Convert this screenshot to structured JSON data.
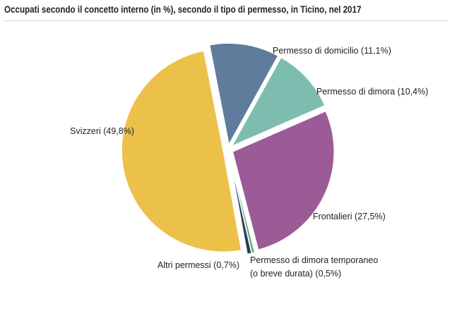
{
  "chart_data": {
    "type": "pie",
    "title": "Occupati secondo il concetto interno (in %), secondo il tipo di permesso, in Ticino, nel 2017",
    "slices": [
      {
        "name": "Permesso di domicilio",
        "label": "Permesso di domicilio (11,1%)",
        "value": 11.1,
        "color": "#5f7c9c",
        "exploded": true
      },
      {
        "name": "Permesso di dimora",
        "label": "Permesso di dimora (10,4%)",
        "value": 10.4,
        "color": "#7dbdb0",
        "exploded": true
      },
      {
        "name": "Frontalieri",
        "label": "Frontalieri (27,5%)",
        "value": 27.5,
        "color": "#9b5b96",
        "exploded": true
      },
      {
        "name": "Permesso di dimora temporaneo (o breve durata)",
        "label_lines": [
          "Permesso di dimora temporaneo",
          "(o breve durata) (0,5%)"
        ],
        "value": 0.5,
        "color": "#5fb07a",
        "exploded": true
      },
      {
        "name": "Altri permessi",
        "label": "Altri permessi (0,7%)",
        "value": 0.7,
        "color": "#2e3a5c",
        "exploded": true
      },
      {
        "name": "Svizzeri",
        "label": "Svizzeri (49,8%)",
        "value": 49.8,
        "color": "#ecc14a",
        "exploded": true
      }
    ]
  }
}
